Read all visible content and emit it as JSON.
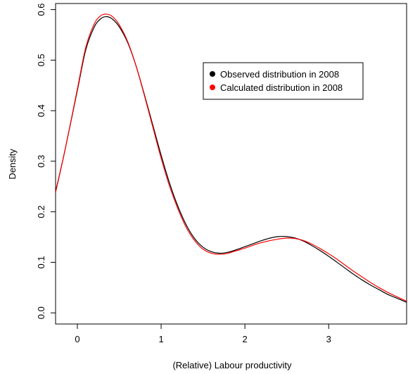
{
  "chart_data": {
    "type": "line",
    "title": "",
    "xlabel": "(Relative) Labour productivity",
    "ylabel": "Density",
    "xlim": [
      -0.26,
      3.93
    ],
    "ylim": [
      -0.022,
      0.612
    ],
    "x_ticks": [
      0,
      1,
      2,
      3
    ],
    "y_ticks": [
      0.0,
      0.1,
      0.2,
      0.3,
      0.4,
      0.5,
      0.6
    ],
    "x_tick_labels": [
      "0",
      "1",
      "2",
      "3"
    ],
    "y_tick_labels": [
      "0.0",
      "0.1",
      "0.2",
      "0.3",
      "0.4",
      "0.5",
      "0.6"
    ],
    "grid": false,
    "legend_position": "top-right",
    "series": [
      {
        "name": "Observed distribution in 2008",
        "color": "#000000",
        "x": [
          -0.26,
          -0.15,
          0.0,
          0.1,
          0.2,
          0.28,
          0.35,
          0.42,
          0.5,
          0.6,
          0.7,
          0.8,
          0.9,
          1.0,
          1.1,
          1.2,
          1.3,
          1.4,
          1.5,
          1.6,
          1.7,
          1.8,
          1.9,
          2.0,
          2.1,
          2.2,
          2.3,
          2.4,
          2.5,
          2.6,
          2.7,
          2.8,
          2.9,
          3.0,
          3.1,
          3.2,
          3.3,
          3.4,
          3.5,
          3.6,
          3.7,
          3.8,
          3.93
        ],
        "y": [
          0.24,
          0.32,
          0.44,
          0.52,
          0.565,
          0.582,
          0.586,
          0.581,
          0.566,
          0.535,
          0.489,
          0.432,
          0.372,
          0.312,
          0.257,
          0.211,
          0.174,
          0.147,
          0.13,
          0.121,
          0.118,
          0.12,
          0.125,
          0.131,
          0.137,
          0.143,
          0.148,
          0.151,
          0.151,
          0.148,
          0.142,
          0.133,
          0.123,
          0.112,
          0.1,
          0.088,
          0.076,
          0.065,
          0.055,
          0.046,
          0.037,
          0.03,
          0.021
        ]
      },
      {
        "name": "Calculated distribution in 2008",
        "color": "#ff0000",
        "x": [
          -0.26,
          -0.15,
          0.0,
          0.1,
          0.2,
          0.28,
          0.35,
          0.42,
          0.5,
          0.6,
          0.7,
          0.8,
          0.9,
          1.0,
          1.1,
          1.2,
          1.3,
          1.4,
          1.5,
          1.6,
          1.7,
          1.8,
          1.9,
          2.0,
          2.1,
          2.2,
          2.3,
          2.4,
          2.5,
          2.6,
          2.7,
          2.8,
          2.9,
          3.0,
          3.1,
          3.2,
          3.3,
          3.4,
          3.5,
          3.6,
          3.7,
          3.8,
          3.93
        ],
        "y": [
          0.238,
          0.32,
          0.443,
          0.525,
          0.571,
          0.588,
          0.591,
          0.586,
          0.57,
          0.537,
          0.489,
          0.43,
          0.368,
          0.306,
          0.251,
          0.206,
          0.169,
          0.143,
          0.126,
          0.118,
          0.116,
          0.118,
          0.123,
          0.128,
          0.134,
          0.139,
          0.143,
          0.146,
          0.148,
          0.147,
          0.143,
          0.136,
          0.127,
          0.117,
          0.106,
          0.094,
          0.082,
          0.071,
          0.06,
          0.05,
          0.041,
          0.033,
          0.023
        ]
      }
    ]
  }
}
